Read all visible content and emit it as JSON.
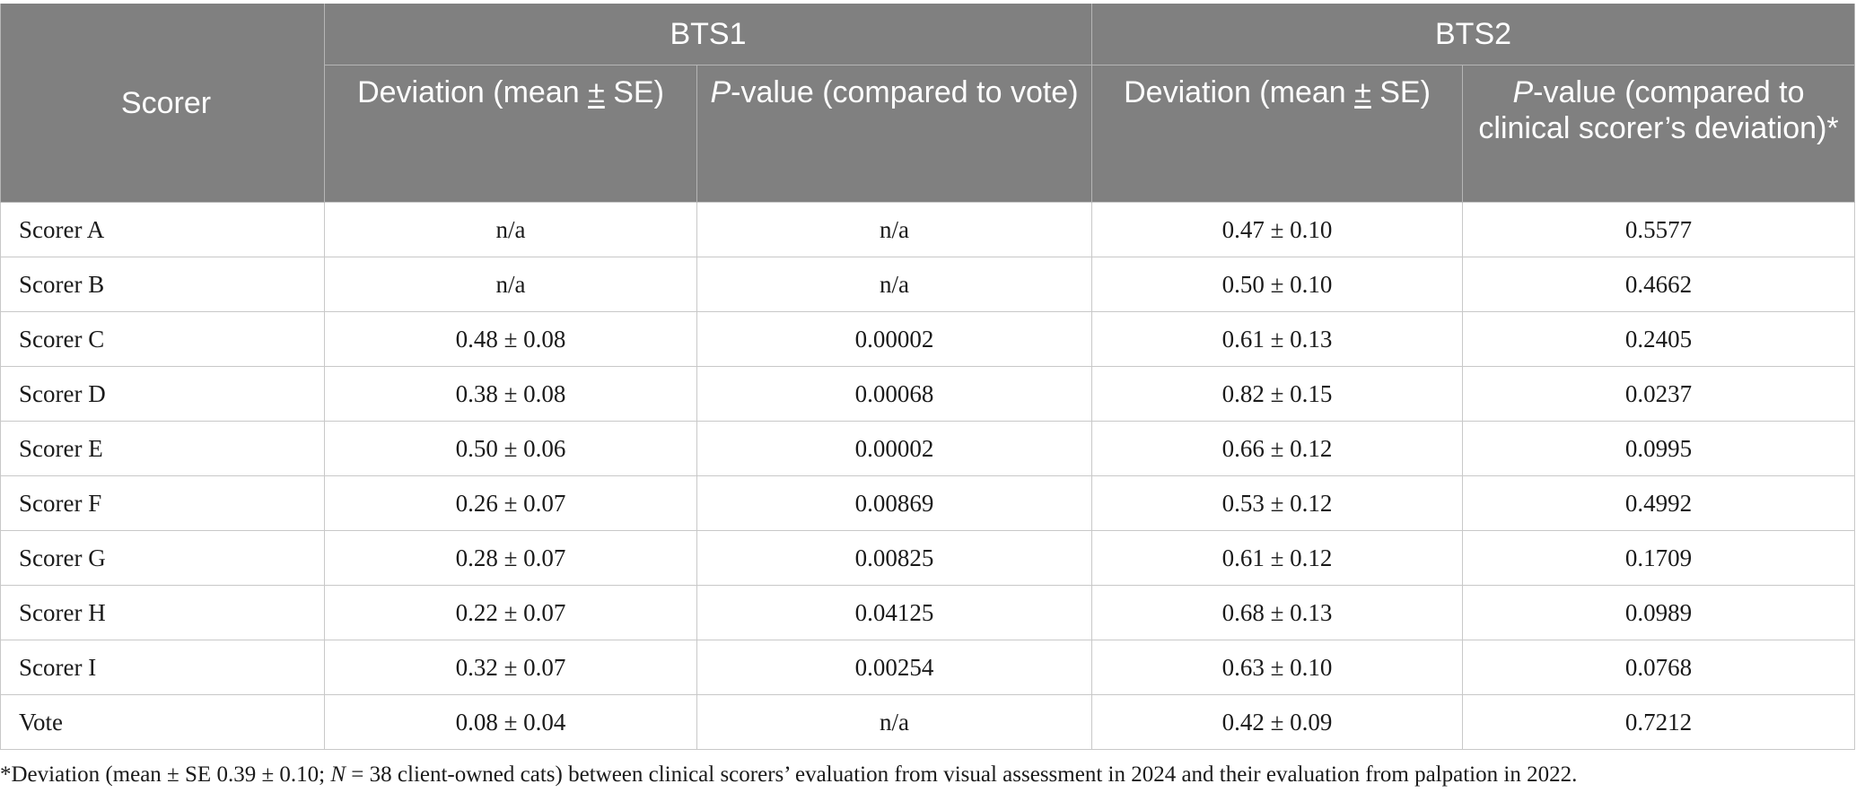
{
  "header": {
    "scorer": "Scorer",
    "group1": "BTS1",
    "group2": "BTS2",
    "bts1_dev_a": "Deviation (mean ",
    "bts1_dev_pm": "±",
    "bts1_dev_b": " SE)",
    "bts1_p_italic": "P",
    "bts1_p_rest": "-value (compared to vote)",
    "bts2_dev_a": "Deviation (mean ",
    "bts2_dev_pm": "±",
    "bts2_dev_b": " SE)",
    "bts2_p_italic": "P",
    "bts2_p_rest": "-value (compared to clinical scorer’s deviation)*"
  },
  "rows": [
    {
      "scorer": "Scorer A",
      "bts1_dev": "n/a",
      "bts1_p": "n/a",
      "bts2_dev": "0.47 ± 0.10",
      "bts2_p": "0.5577"
    },
    {
      "scorer": "Scorer B",
      "bts1_dev": "n/a",
      "bts1_p": "n/a",
      "bts2_dev": "0.50 ± 0.10",
      "bts2_p": "0.4662"
    },
    {
      "scorer": "Scorer C",
      "bts1_dev": "0.48 ± 0.08",
      "bts1_p": "0.00002",
      "bts2_dev": "0.61 ± 0.13",
      "bts2_p": "0.2405"
    },
    {
      "scorer": "Scorer D",
      "bts1_dev": "0.38 ± 0.08",
      "bts1_p": "0.00068",
      "bts2_dev": "0.82 ± 0.15",
      "bts2_p": "0.0237"
    },
    {
      "scorer": "Scorer E",
      "bts1_dev": "0.50 ± 0.06",
      "bts1_p": "0.00002",
      "bts2_dev": "0.66 ± 0.12",
      "bts2_p": "0.0995"
    },
    {
      "scorer": "Scorer F",
      "bts1_dev": "0.26 ± 0.07",
      "bts1_p": "0.00869",
      "bts2_dev": "0.53 ± 0.12",
      "bts2_p": "0.4992"
    },
    {
      "scorer": "Scorer G",
      "bts1_dev": "0.28 ± 0.07",
      "bts1_p": "0.00825",
      "bts2_dev": "0.61 ± 0.12",
      "bts2_p": "0.1709"
    },
    {
      "scorer": "Scorer H",
      "bts1_dev": "0.22 ± 0.07",
      "bts1_p": "0.04125",
      "bts2_dev": "0.68 ± 0.13",
      "bts2_p": "0.0989"
    },
    {
      "scorer": "Scorer I",
      "bts1_dev": "0.32 ± 0.07",
      "bts1_p": "0.00254",
      "bts2_dev": "0.63 ± 0.10",
      "bts2_p": "0.0768"
    },
    {
      "scorer": "Vote",
      "bts1_dev": "0.08 ± 0.04",
      "bts1_p": "n/a",
      "bts2_dev": "0.42 ± 0.09",
      "bts2_p": "0.7212"
    }
  ],
  "footnote": {
    "a": "*Deviation (mean ± SE 0.39 ± 0.10; ",
    "n_italic": "N",
    "b": " = 38 client-owned cats) between clinical scorers’ evaluation from visual assessment in 2024 and their evaluation from palpation in 2022."
  }
}
